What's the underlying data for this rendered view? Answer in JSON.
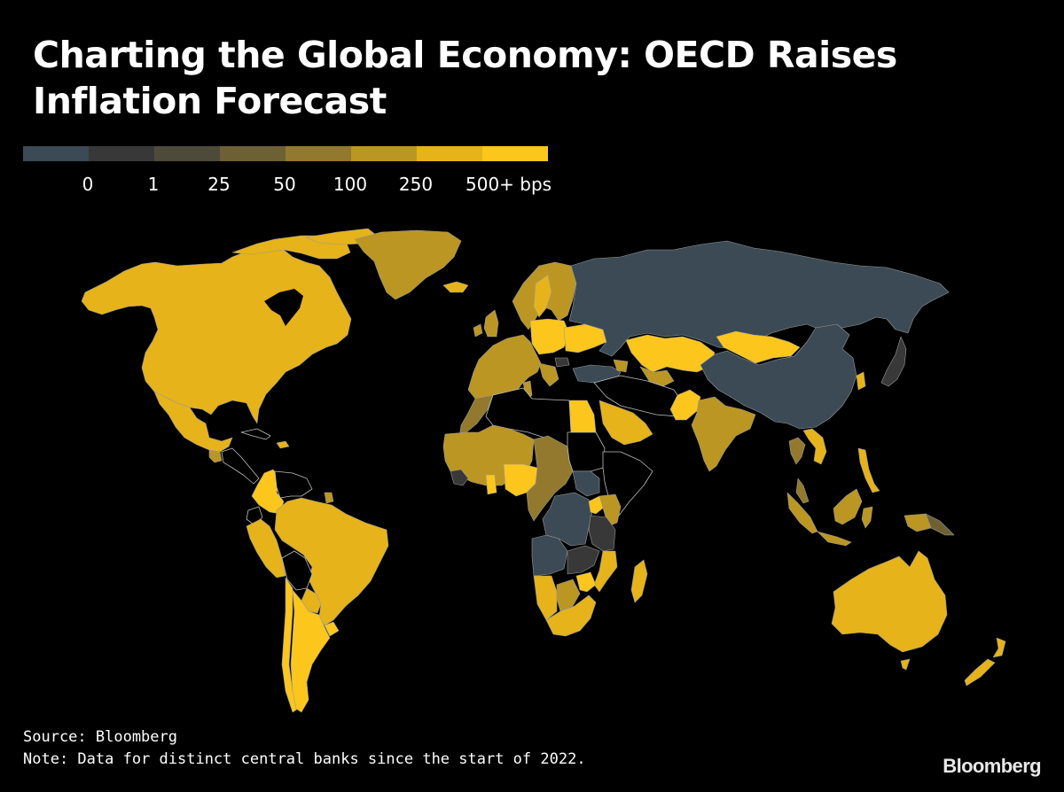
{
  "title": "Charting the Global Economy: OECD Raises Inflation Forecast",
  "legend": {
    "colors": [
      "#3b4a54",
      "#383838",
      "#4e4a3a",
      "#6e6035",
      "#93792d",
      "#bb9623",
      "#e6b31a",
      "#fcc61c"
    ],
    "labels": [
      "0",
      "1",
      "25",
      "50",
      "100",
      "250",
      "500+ bps"
    ]
  },
  "map": {
    "metric": "Cumulative central bank rate change since start of 2022 (bps)",
    "regions": [
      {
        "name": "North America",
        "category": 6
      },
      {
        "name": "Greenland",
        "category": 5
      },
      {
        "name": "Iceland",
        "category": 6
      },
      {
        "name": "Mexico",
        "category": 6
      },
      {
        "name": "Guatemala",
        "category": 5
      },
      {
        "name": "Central America & Caribbean",
        "category": -1
      },
      {
        "name": "Dominican Republic",
        "category": 6
      },
      {
        "name": "Colombia",
        "category": 7
      },
      {
        "name": "Venezuela",
        "category": -1
      },
      {
        "name": "Suriname",
        "category": 5
      },
      {
        "name": "Ecuador",
        "category": -1
      },
      {
        "name": "Peru",
        "category": 6
      },
      {
        "name": "Brazil",
        "category": 6
      },
      {
        "name": "Bolivia",
        "category": -1
      },
      {
        "name": "Paraguay",
        "category": 6
      },
      {
        "name": "Uruguay",
        "category": 7
      },
      {
        "name": "Chile",
        "category": 7
      },
      {
        "name": "Argentina",
        "category": 7
      },
      {
        "name": "Western Europe",
        "category": 5
      },
      {
        "name": "Scandinavia",
        "category": 5
      },
      {
        "name": "Sweden",
        "category": 6
      },
      {
        "name": "Poland & Central Europe",
        "category": 7
      },
      {
        "name": "Ukraine",
        "category": 7
      },
      {
        "name": "Bulgaria",
        "category": 1
      },
      {
        "name": "Russia",
        "category": 0
      },
      {
        "name": "Kazakhstan",
        "category": 7
      },
      {
        "name": "Uzbekistan",
        "category": 5
      },
      {
        "name": "Mongolia",
        "category": 7
      },
      {
        "name": "China",
        "category": 0
      },
      {
        "name": "Japan",
        "category": 1
      },
      {
        "name": "South Korea",
        "category": 6
      },
      {
        "name": "Turkey",
        "category": 0
      },
      {
        "name": "Georgia & Armenia",
        "category": 5
      },
      {
        "name": "Egypt",
        "category": 7
      },
      {
        "name": "Saudi Arabia & Gulf",
        "category": 6
      },
      {
        "name": "Pakistan",
        "category": 7
      },
      {
        "name": "India",
        "category": 5
      },
      {
        "name": "Thailand",
        "category": 4
      },
      {
        "name": "Vietnam",
        "category": 6
      },
      {
        "name": "Philippines",
        "category": 6
      },
      {
        "name": "Malaysia",
        "category": 4
      },
      {
        "name": "Indonesia",
        "category": 5
      },
      {
        "name": "Papua New Guinea",
        "category": 3
      },
      {
        "name": "Australia",
        "category": 6
      },
      {
        "name": "New Zealand",
        "category": 6
      },
      {
        "name": "Morocco",
        "category": 4
      },
      {
        "name": "Tunisia",
        "category": 5
      },
      {
        "name": "West Africa (WAEMU)",
        "category": 5
      },
      {
        "name": "Guinea",
        "category": 1
      },
      {
        "name": "Ghana",
        "category": 7
      },
      {
        "name": "Nigeria",
        "category": 7
      },
      {
        "name": "Central Africa (CEMAC)",
        "category": 4
      },
      {
        "name": "South Sudan",
        "category": 0
      },
      {
        "name": "DR Congo",
        "category": 0
      },
      {
        "name": "Angola",
        "category": 0
      },
      {
        "name": "Uganda",
        "category": 7
      },
      {
        "name": "Kenya",
        "category": 5
      },
      {
        "name": "Tanzania",
        "category": 1
      },
      {
        "name": "Zambia",
        "category": 1
      },
      {
        "name": "Mozambique",
        "category": 6
      },
      {
        "name": "Namibia",
        "category": 6
      },
      {
        "name": "Botswana",
        "category": 5
      },
      {
        "name": "Zimbabwe",
        "category": 7
      },
      {
        "name": "South Africa",
        "category": 6
      },
      {
        "name": "Madagascar",
        "category": 6
      }
    ]
  },
  "source": "Source: Bloomberg",
  "note": "Note: Data for distinct central banks since the start of 2022.",
  "logo": "Bloomberg"
}
